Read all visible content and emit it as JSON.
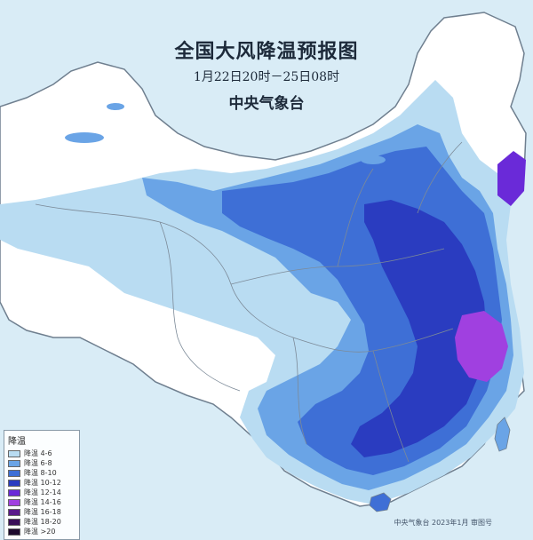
{
  "title": {
    "main": "全国大风降温预报图",
    "time": "1月22日20时－25日08时",
    "issuer": "中央气象台"
  },
  "legend": {
    "title": "降温",
    "items": [
      {
        "label": "降温 4-6",
        "color": "#b9dcf2"
      },
      {
        "label": "降温 6-8",
        "color": "#6aa4e6"
      },
      {
        "label": "降温 8-10",
        "color": "#3e6fd6"
      },
      {
        "label": "降温 10-12",
        "color": "#2a3cc0"
      },
      {
        "label": "降温 12-14",
        "color": "#6a2ad8"
      },
      {
        "label": "降温 14-16",
        "color": "#a040e0"
      },
      {
        "label": "降温 16-18",
        "color": "#5a1a8a"
      },
      {
        "label": "降温 18-20",
        "color": "#3a1058"
      },
      {
        "label": "降温 >20",
        "color": "#1e0a2e"
      }
    ]
  },
  "colors": {
    "sea": "#d9ecf6",
    "land": "#ffffff",
    "light_blue": "#b9dcf2",
    "mid_blue": "#6aa4e6",
    "blue": "#3e6fd6",
    "dark_blue": "#2a3cc0",
    "purple": "#a040e0"
  },
  "footer": "中央气象台 2023年1月 审图号"
}
